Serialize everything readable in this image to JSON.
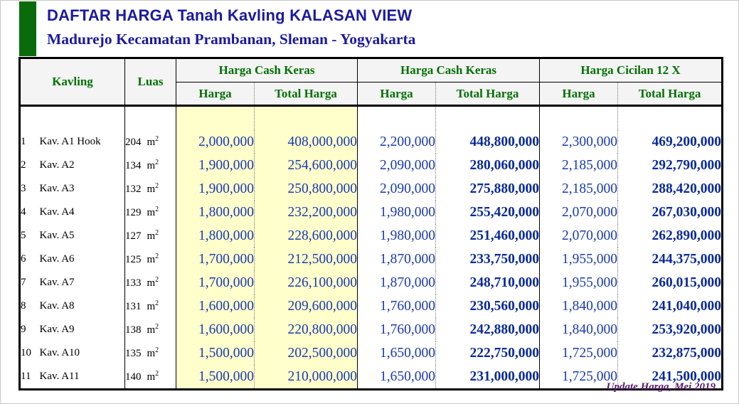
{
  "title": "DAFTAR HARGA Tanah Kavling KALASAN VIEW",
  "subtitle": "Madurejo Kecamatan Prambanan, Sleman - Yogyakarta",
  "headers": {
    "kavling": "Kavling",
    "luas": "Luas",
    "group1": "Harga Cash Keras",
    "group2": "Harga Cash Keras",
    "group3": "Harga Cicilan 12 X",
    "harga": "Harga",
    "total": "Total Harga"
  },
  "area_unit": "m",
  "area_exp": "2",
  "rows": [
    {
      "no": "1",
      "kavling": "Kav. A1 Hook",
      "luas": "204",
      "h1": "2,000,000",
      "t1": "408,000,000",
      "h2": "2,200,000",
      "t2": "448,800,000",
      "h3": "2,300,000",
      "t3": "469,200,000"
    },
    {
      "no": "2",
      "kavling": "Kav. A2",
      "luas": "134",
      "h1": "1,900,000",
      "t1": "254,600,000",
      "h2": "2,090,000",
      "t2": "280,060,000",
      "h3": "2,185,000",
      "t3": "292,790,000"
    },
    {
      "no": "3",
      "kavling": "Kav. A3",
      "luas": "132",
      "h1": "1,900,000",
      "t1": "250,800,000",
      "h2": "2,090,000",
      "t2": "275,880,000",
      "h3": "2,185,000",
      "t3": "288,420,000"
    },
    {
      "no": "4",
      "kavling": "Kav. A4",
      "luas": "129",
      "h1": "1,800,000",
      "t1": "232,200,000",
      "h2": "1,980,000",
      "t2": "255,420,000",
      "h3": "2,070,000",
      "t3": "267,030,000"
    },
    {
      "no": "5",
      "kavling": "Kav. A5",
      "luas": "127",
      "h1": "1,800,000",
      "t1": "228,600,000",
      "h2": "1,980,000",
      "t2": "251,460,000",
      "h3": "2,070,000",
      "t3": "262,890,000"
    },
    {
      "no": "6",
      "kavling": "Kav. A6",
      "luas": "125",
      "h1": "1,700,000",
      "t1": "212,500,000",
      "h2": "1,870,000",
      "t2": "233,750,000",
      "h3": "1,955,000",
      "t3": "244,375,000"
    },
    {
      "no": "7",
      "kavling": "Kav. A7",
      "luas": "133",
      "h1": "1,700,000",
      "t1": "226,100,000",
      "h2": "1,870,000",
      "t2": "248,710,000",
      "h3": "1,955,000",
      "t3": "260,015,000"
    },
    {
      "no": "8",
      "kavling": "Kav. A8",
      "luas": "131",
      "h1": "1,600,000",
      "t1": "209,600,000",
      "h2": "1,760,000",
      "t2": "230,560,000",
      "h3": "1,840,000",
      "t3": "241,040,000"
    },
    {
      "no": "9",
      "kavling": "Kav. A9",
      "luas": "138",
      "h1": "1,600,000",
      "t1": "220,800,000",
      "h2": "1,760,000",
      "t2": "242,880,000",
      "h3": "1,840,000",
      "t3": "253,920,000"
    },
    {
      "no": "10",
      "kavling": "Kav. A10",
      "luas": "135",
      "h1": "1,500,000",
      "t1": "202,500,000",
      "h2": "1,650,000",
      "t2": "222,750,000",
      "h3": "1,725,000",
      "t3": "232,875,000"
    },
    {
      "no": "11",
      "kavling": "Kav. A11",
      "luas": "140",
      "h1": "1,500,000",
      "t1": "210,000,000",
      "h2": "1,650,000",
      "t2": "231,000,000",
      "h3": "1,725,000",
      "t3": "241,500,000"
    }
  ],
  "footer": "Update Harga, Mei 2019",
  "colors": {
    "accent_green": "#0a6b0a",
    "title_blue": "#1a1aa0",
    "value_blue": "#1a3ab0",
    "highlight_yellow": "#ffffcc",
    "footer_purple": "#5a1a6e"
  }
}
